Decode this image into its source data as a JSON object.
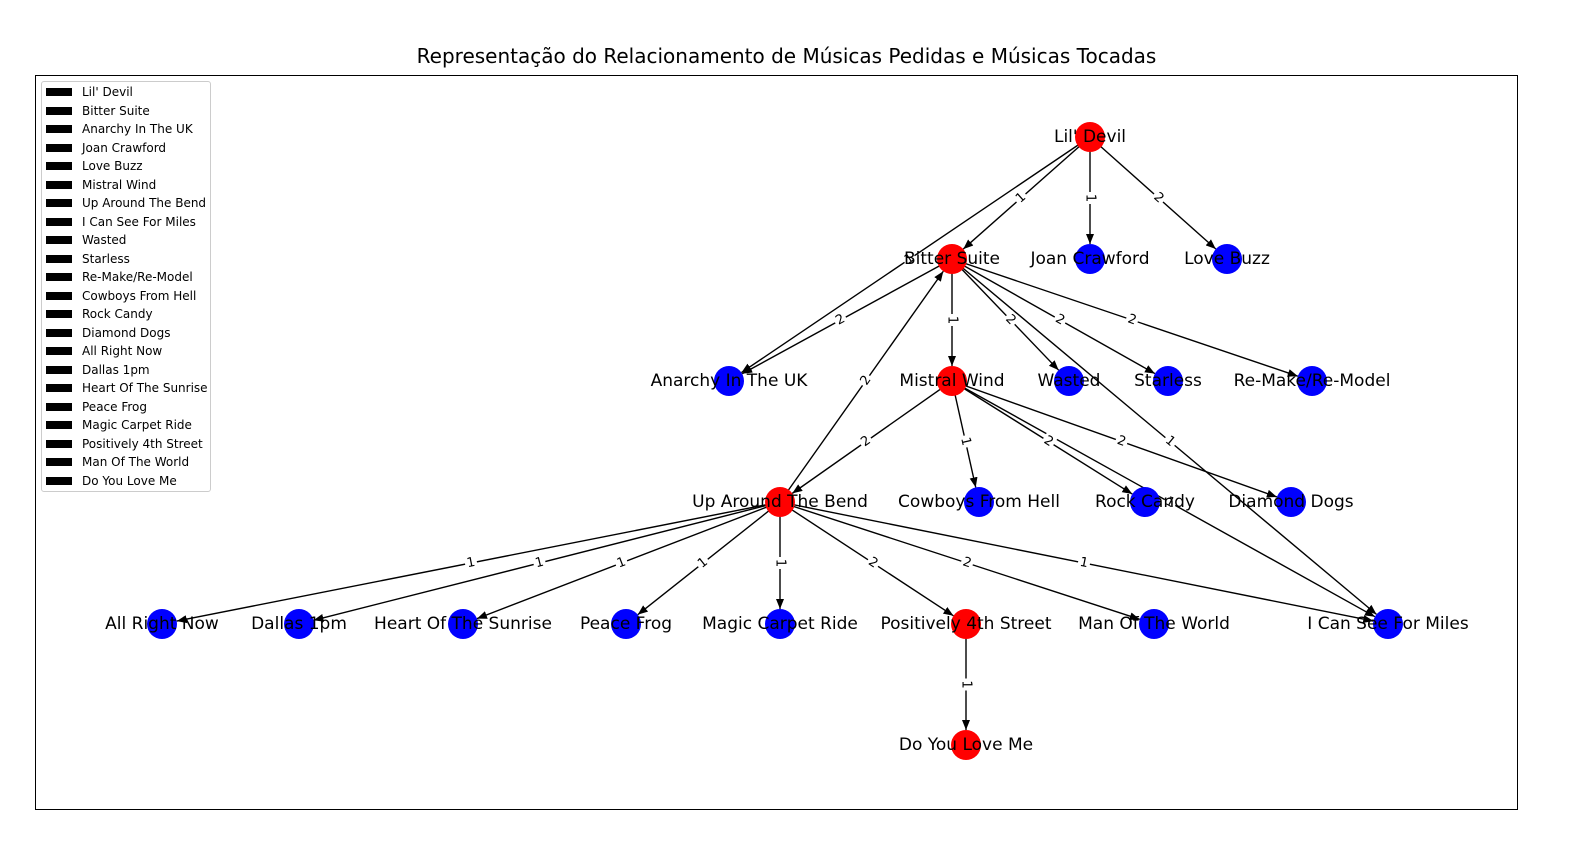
{
  "title": "Representação do Relacionamento de Músicas Pedidas e Músicas Tocadas",
  "colors": {
    "requested": "#ff0000",
    "played": "#0000ff",
    "edge": "#000000"
  },
  "legend": [
    "Lil' Devil",
    "Bitter Suite",
    "Anarchy In The UK",
    "Joan Crawford",
    "Love Buzz",
    "Mistral Wind",
    "Up Around The Bend",
    "I Can See For Miles",
    "Wasted",
    "Starless",
    "Re-Make/Re-Model",
    "Cowboys From Hell",
    "Rock Candy",
    "Diamond Dogs",
    "All Right Now",
    "Dallas 1pm",
    "Heart Of The Sunrise",
    "Peace Frog",
    "Magic Carpet Ride",
    "Positively 4th Street",
    "Man Of The World",
    "Do You Love Me"
  ],
  "nodes": [
    {
      "id": "Lil' Devil",
      "color": "red"
    },
    {
      "id": "Bitter Suite",
      "color": "red"
    },
    {
      "id": "Joan Crawford",
      "color": "blue"
    },
    {
      "id": "Love Buzz",
      "color": "blue"
    },
    {
      "id": "Anarchy In The UK",
      "color": "blue"
    },
    {
      "id": "Mistral Wind",
      "color": "red"
    },
    {
      "id": "Wasted",
      "color": "blue"
    },
    {
      "id": "Starless",
      "color": "blue"
    },
    {
      "id": "Re-Make/Re-Model",
      "color": "blue"
    },
    {
      "id": "Up Around The Bend",
      "color": "red"
    },
    {
      "id": "Cowboys From Hell",
      "color": "blue"
    },
    {
      "id": "Rock Candy",
      "color": "blue"
    },
    {
      "id": "Diamond Dogs",
      "color": "blue"
    },
    {
      "id": "All Right Now",
      "color": "blue"
    },
    {
      "id": "Dallas 1pm",
      "color": "blue"
    },
    {
      "id": "Heart Of The Sunrise",
      "color": "blue"
    },
    {
      "id": "Peace Frog",
      "color": "blue"
    },
    {
      "id": "Magic Carpet Ride",
      "color": "blue"
    },
    {
      "id": "Positively 4th Street",
      "color": "red"
    },
    {
      "id": "Man Of The World",
      "color": "blue"
    },
    {
      "id": "I Can See For Miles",
      "color": "blue"
    },
    {
      "id": "Do You Love Me",
      "color": "red"
    }
  ],
  "edges": [
    {
      "from": "Lil' Devil",
      "to": "Bitter Suite",
      "label": "1"
    },
    {
      "from": "Lil' Devil",
      "to": "Joan Crawford",
      "label": "1"
    },
    {
      "from": "Lil' Devil",
      "to": "Love Buzz",
      "label": "2"
    },
    {
      "from": "Lil' Devil",
      "to": "Anarchy In The UK",
      "label": "1"
    },
    {
      "from": "Bitter Suite",
      "to": "Anarchy In The UK",
      "label": "2"
    },
    {
      "from": "Bitter Suite",
      "to": "Mistral Wind",
      "label": "1"
    },
    {
      "from": "Bitter Suite",
      "to": "Wasted",
      "label": "2"
    },
    {
      "from": "Bitter Suite",
      "to": "Starless",
      "label": "2"
    },
    {
      "from": "Bitter Suite",
      "to": "Re-Make/Re-Model",
      "label": "2"
    },
    {
      "from": "Bitter Suite",
      "to": "I Can See For Miles",
      "label": "1"
    },
    {
      "from": "Up Around The Bend",
      "to": "Bitter Suite",
      "label": "2"
    },
    {
      "from": "Mistral Wind",
      "to": "Up Around The Bend",
      "label": "2"
    },
    {
      "from": "Mistral Wind",
      "to": "Cowboys From Hell",
      "label": "1"
    },
    {
      "from": "Mistral Wind",
      "to": "Rock Candy",
      "label": "2"
    },
    {
      "from": "Mistral Wind",
      "to": "Diamond Dogs",
      "label": "2"
    },
    {
      "from": "Mistral Wind",
      "to": "I Can See For Miles",
      "label": "1"
    },
    {
      "from": "Up Around The Bend",
      "to": "All Right Now",
      "label": "1"
    },
    {
      "from": "Up Around The Bend",
      "to": "Dallas 1pm",
      "label": "1"
    },
    {
      "from": "Up Around The Bend",
      "to": "Heart Of The Sunrise",
      "label": "1"
    },
    {
      "from": "Up Around The Bend",
      "to": "Peace Frog",
      "label": "1"
    },
    {
      "from": "Up Around The Bend",
      "to": "Magic Carpet Ride",
      "label": "1"
    },
    {
      "from": "Up Around The Bend",
      "to": "Positively 4th Street",
      "label": "2"
    },
    {
      "from": "Up Around The Bend",
      "to": "Man Of The World",
      "label": "2"
    },
    {
      "from": "Up Around The Bend",
      "to": "I Can See For Miles",
      "label": "1"
    },
    {
      "from": "Positively 4th Street",
      "to": "Do You Love Me",
      "label": "1"
    }
  ]
}
